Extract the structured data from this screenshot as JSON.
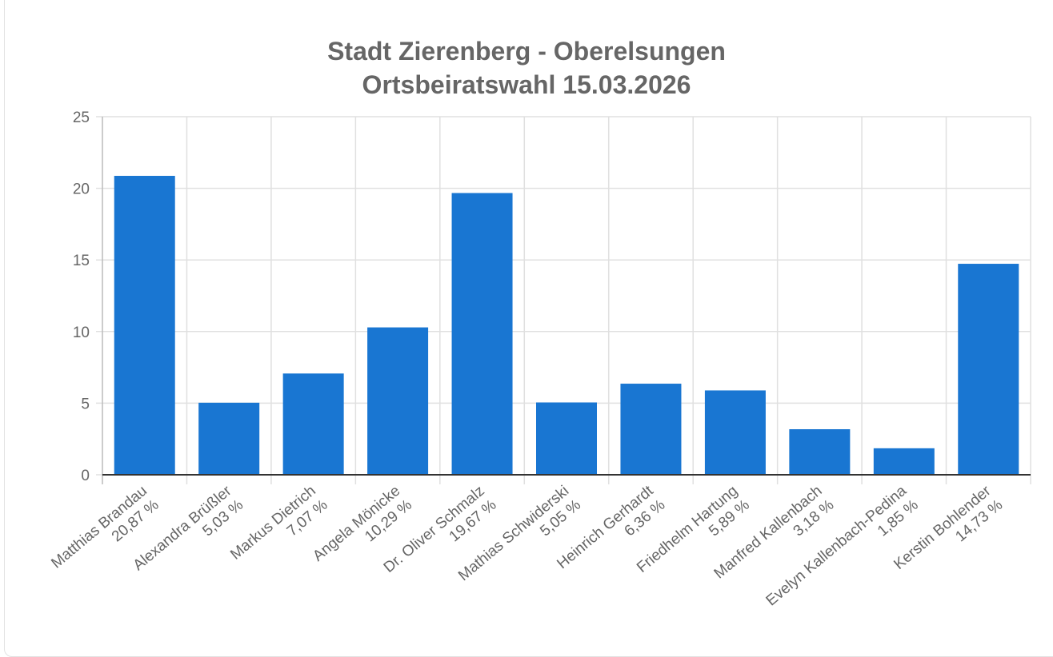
{
  "chart_data": {
    "type": "bar",
    "title": [
      "Stadt Zierenberg - Oberelsungen",
      "Ortsbeiratswahl 15.03.2026"
    ],
    "categories": [
      {
        "name": "Matthias Brandau",
        "label": "20,87 %"
      },
      {
        "name": "Alexandra Brüßler",
        "label": "5,03 %"
      },
      {
        "name": "Markus Dietrich",
        "label": "7,07 %"
      },
      {
        "name": "Angela Mönicke",
        "label": "10,29 %"
      },
      {
        "name": "Dr. Oliver Schmalz",
        "label": "19,67 %"
      },
      {
        "name": "Mathias Schwiderski",
        "label": "5,05 %"
      },
      {
        "name": "Heinrich Gerhardt",
        "label": "6,36 %"
      },
      {
        "name": "Friedhelm Hartung",
        "label": "5,89 %"
      },
      {
        "name": "Manfred Kallenbach",
        "label": "3,18 %"
      },
      {
        "name": "Evelyn Kallenbach-Pedina",
        "label": "1,85 %"
      },
      {
        "name": "Kerstin Bohlender",
        "label": "14,73 %"
      }
    ],
    "values": [
      20.87,
      5.03,
      7.07,
      10.29,
      19.67,
      5.05,
      6.36,
      5.89,
      3.18,
      1.85,
      14.73
    ],
    "yticks": [
      "0",
      "5",
      "10",
      "15",
      "20",
      "25"
    ],
    "ylim": [
      0,
      25
    ],
    "grid": true,
    "bar_color": "#1976d2",
    "xlabel": "",
    "ylabel": ""
  }
}
